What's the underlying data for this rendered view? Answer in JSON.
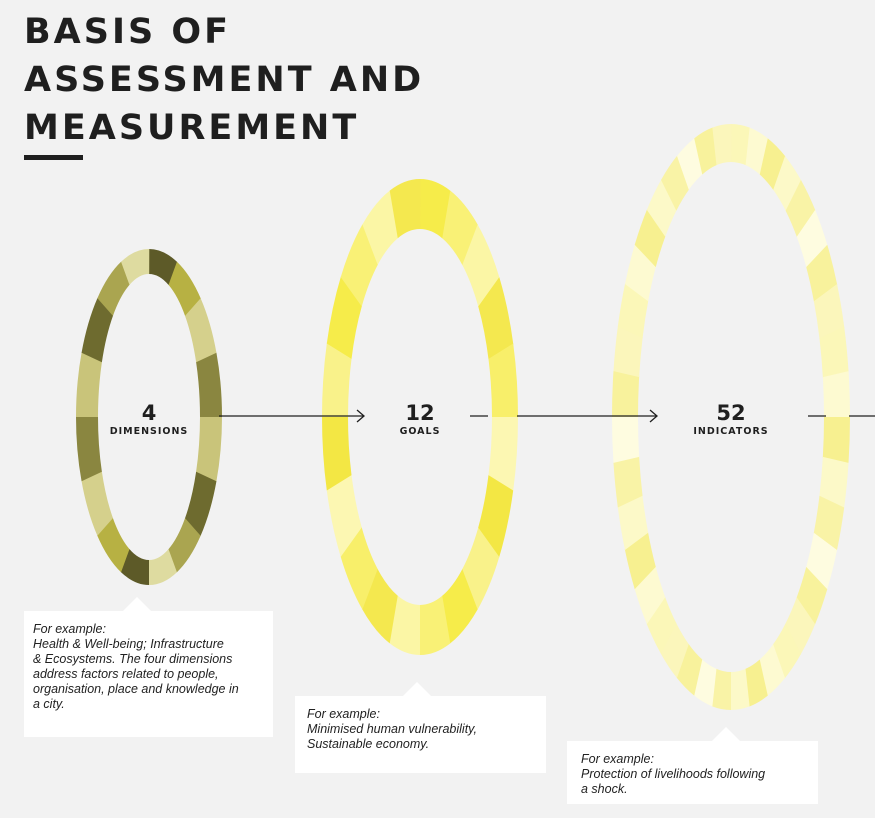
{
  "title": {
    "line1": "BASIS OF",
    "line2": "ASSESSMENT AND",
    "line3": "MEASUREMENT"
  },
  "stages": [
    {
      "number": "4",
      "label": "DIMENSIONS"
    },
    {
      "number": "12",
      "label": "GOALS"
    },
    {
      "number": "52",
      "label": "INDICATORS"
    }
  ],
  "callouts": [
    {
      "heading": "For example:",
      "lines": [
        "Health & Well-being;  Infrastructure",
        "& Ecosystems. The four dimensions",
        "address factors related to people,",
        "organisation, place and knowledge in",
        "a city."
      ]
    },
    {
      "heading": "For example:",
      "lines": [
        "Minimised human vulnerability,",
        "Sustainable economy."
      ]
    },
    {
      "heading": "For example:",
      "lines": [
        "Protection of livelihoods following",
        "a shock."
      ]
    }
  ],
  "colors": {
    "ring1": [
      "#5d5a28",
      "#b7b143",
      "#d5d08c",
      "#8a8640",
      "#c9c47a",
      "#6e6b2f",
      "#aaa550",
      "#dedba0"
    ],
    "ring2": [
      "#f6ec4a",
      "#f9f176",
      "#fbf6a5",
      "#f4e84f",
      "#f8ef6a",
      "#fcf7b2",
      "#f3e744",
      "#f9f28a"
    ],
    "ring3": [
      "#fbf7b8",
      "#fdfad1",
      "#f7f090",
      "#fcf9c8",
      "#f9f3a6",
      "#fefce0",
      "#f8f29c",
      "#fbf6bb"
    ],
    "text": "#1f1f1f",
    "background": "#f2f2f2"
  }
}
